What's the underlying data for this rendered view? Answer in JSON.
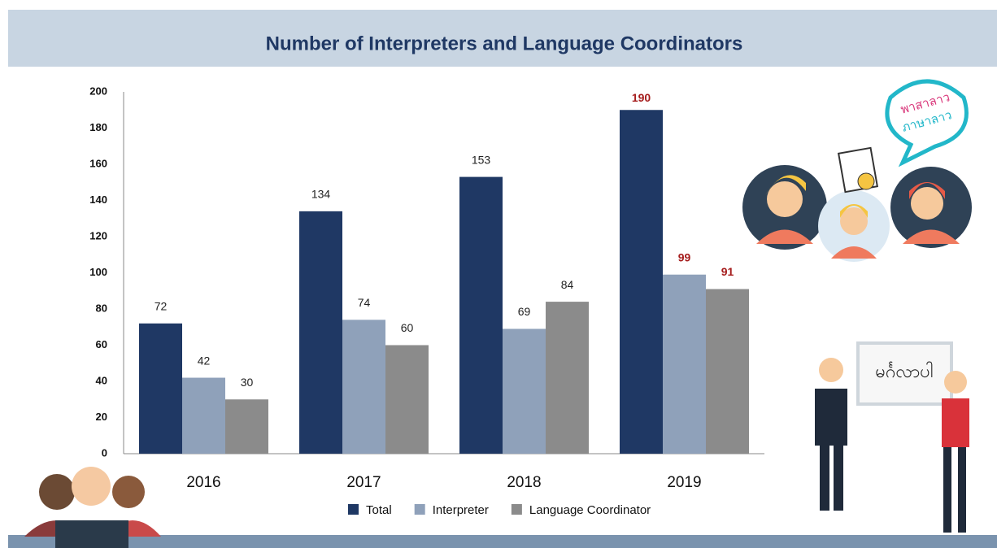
{
  "chart_data": {
    "type": "bar",
    "title": "Number of Interpreters and Language Coordinators",
    "categories": [
      "2016",
      "2017",
      "2018",
      "2019"
    ],
    "series": [
      {
        "name": "Total",
        "color": "#1f3864",
        "values": [
          72,
          134,
          153,
          190
        ]
      },
      {
        "name": "Interpreter",
        "color": "#8fa1ba",
        "values": [
          42,
          74,
          69,
          99
        ]
      },
      {
        "name": "Language Coordinator",
        "color": "#8b8b8b",
        "values": [
          30,
          60,
          84,
          91
        ]
      }
    ],
    "ylim": [
      0,
      200
    ],
    "yticks": [
      0,
      20,
      40,
      60,
      80,
      100,
      120,
      140,
      160,
      180,
      200
    ],
    "grid": false
  },
  "illustrations": {
    "bubble": [
      "พาสาลาว",
      "ภาษาลาว"
    ],
    "board": "မင်္ဂလာပါ"
  }
}
